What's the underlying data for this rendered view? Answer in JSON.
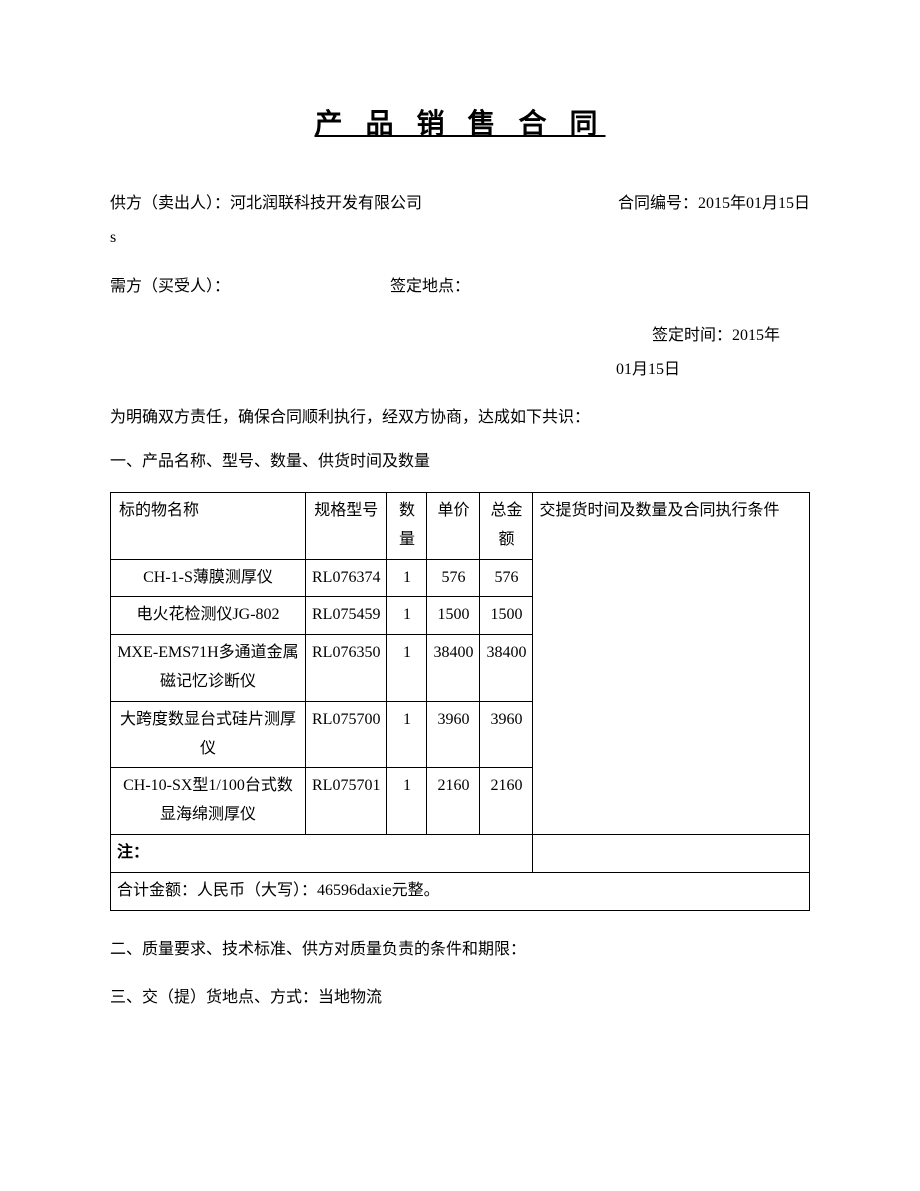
{
  "title": "产 品 销 售 合 同",
  "supplier_label": "供方（卖出人）：",
  "supplier_name": "河北润联科技开发有限公司",
  "contract_no_label": "合同编号：",
  "contract_no": "2015年01月15日",
  "s_text": "s",
  "buyer_label": "需方（买受人）：",
  "sign_place_label": "签定地点：",
  "sign_time_label": "签定时间：",
  "sign_time_1": "2015年",
  "sign_time_2": "01月15日",
  "intro": "为明确双方责任，确保合同顺利执行，经双方协商，达成如下共识：",
  "section1": "一、产品名称、型号、数量、供货时间及数量",
  "table": {
    "headers": {
      "name": "标的物名称",
      "model": "规格型号",
      "qty": "数量",
      "price": "单价",
      "total": "总金额",
      "cond": "交提货时间及数量及合同执行条件"
    },
    "rows": [
      {
        "name": "CH-1-S薄膜测厚仪",
        "model": "RL076374",
        "qty": "1",
        "price": "576",
        "total": "576"
      },
      {
        "name": "电火花检测仪JG-802",
        "model": "RL075459",
        "qty": "1",
        "price": "1500",
        "total": "1500"
      },
      {
        "name": "MXE-EMS71H多通道金属磁记忆诊断仪",
        "model": "RL076350",
        "qty": "1",
        "price": "38400",
        "total": "38400"
      },
      {
        "name": "大跨度数显台式硅片测厚仪",
        "model": "RL075700",
        "qty": "1",
        "price": "3960",
        "total": "3960"
      },
      {
        "name": "CH-10-SX型1/100台式数显海绵测厚仪",
        "model": "RL075701",
        "qty": "1",
        "price": "2160",
        "total": "2160"
      }
    ],
    "note_label": "注：",
    "total_label": "合计金额：人民币（大写）：46596daxie元整。"
  },
  "section2": "二、质量要求、技术标准、供方对质量负责的条件和期限：",
  "section3": "三、交（提）货地点、方式：当地物流"
}
